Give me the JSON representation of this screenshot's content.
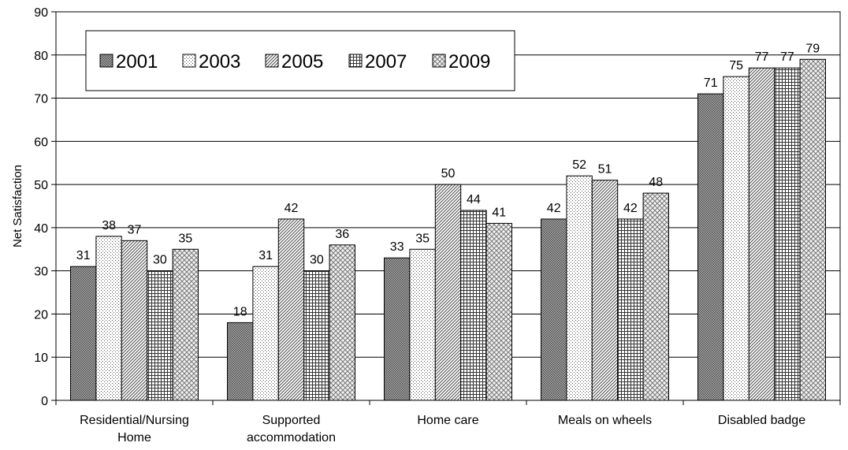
{
  "chart_data": {
    "type": "bar",
    "title": "",
    "xlabel": "",
    "ylabel": "Net Satisfaction",
    "ylim": [
      0,
      90
    ],
    "yticks": [
      0,
      10,
      20,
      30,
      40,
      50,
      60,
      70,
      80,
      90
    ],
    "grid": "horizontal",
    "legend_position": "top-left",
    "categories": [
      [
        "Residential/Nursing",
        "Home"
      ],
      [
        "Supported",
        "accommodation"
      ],
      [
        "Home care"
      ],
      [
        "Meals on wheels"
      ],
      [
        "Disabled badge"
      ]
    ],
    "series": [
      {
        "name": "2001",
        "values": [
          31,
          18,
          33,
          42,
          71
        ],
        "pattern": "dense-dots",
        "color": "#8c8c8c"
      },
      {
        "name": "2003",
        "values": [
          38,
          31,
          35,
          52,
          75
        ],
        "pattern": "sparse-dots",
        "color": "#ffffff"
      },
      {
        "name": "2005",
        "values": [
          37,
          42,
          50,
          51,
          77
        ],
        "pattern": "diagonal",
        "color": "#c8c8c8"
      },
      {
        "name": "2007",
        "values": [
          30,
          30,
          44,
          42,
          77
        ],
        "pattern": "grid",
        "color": "#d0d0d0"
      },
      {
        "name": "2009",
        "values": [
          35,
          36,
          41,
          48,
          79
        ],
        "pattern": "checker",
        "color": "#e0e0e0"
      }
    ]
  }
}
